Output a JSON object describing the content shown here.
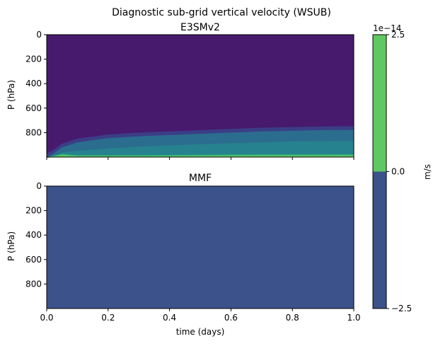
{
  "figure": {
    "suptitle": "Diagnostic sub-grid vertical velocity (WSUB)"
  },
  "chart_data": [
    {
      "type": "heatmap",
      "title": "E3SMv2",
      "ylabel": "P (hPa)",
      "xlabel": "",
      "xlim": [
        0.0,
        1.0
      ],
      "ylim": [
        1000,
        0
      ],
      "y_inverted": true,
      "yticks": [
        "0",
        "200",
        "400",
        "600",
        "800"
      ],
      "xticks_labeled": false,
      "fill_colors": {
        "upper_region": "#471a6e",
        "transition_band": "#3b3e86",
        "mid_band": "#2b6d8e",
        "lower_band": "#26828e",
        "near_surface": "#35b779",
        "surface": "#5ec962"
      },
      "level_boundaries_hpa": {
        "comment_free": true,
        "top_of_mid_band": [
          [
            0.0,
            1000
          ],
          [
            0.02,
            975
          ],
          [
            0.05,
            920
          ],
          [
            0.1,
            880
          ],
          [
            0.2,
            845
          ],
          [
            0.3,
            830
          ],
          [
            0.4,
            820
          ],
          [
            0.5,
            810
          ],
          [
            0.6,
            800
          ],
          [
            0.7,
            790
          ],
          [
            0.8,
            785
          ],
          [
            0.9,
            780
          ],
          [
            1.0,
            778
          ]
        ],
        "top_of_lower_band": [
          [
            0.0,
            1000
          ],
          [
            0.03,
            985
          ],
          [
            0.05,
            960
          ],
          [
            0.1,
            950
          ],
          [
            0.2,
            930
          ],
          [
            0.3,
            915
          ],
          [
            0.4,
            905
          ],
          [
            0.5,
            895
          ],
          [
            0.6,
            888
          ],
          [
            0.7,
            880
          ],
          [
            0.8,
            872
          ],
          [
            0.9,
            870
          ],
          [
            1.0,
            868
          ]
        ],
        "top_of_green": [
          [
            0.0,
            1000
          ],
          [
            0.03,
            985
          ],
          [
            0.05,
            975
          ],
          [
            0.1,
            985
          ],
          [
            0.3,
            985
          ],
          [
            0.6,
            980
          ],
          [
            1.0,
            978
          ]
        ]
      }
    },
    {
      "type": "heatmap",
      "title": "MMF",
      "ylabel": "P (hPa)",
      "xlabel": "time (days)",
      "xlim": [
        0.0,
        1.0
      ],
      "ylim": [
        1000,
        0
      ],
      "y_inverted": true,
      "yticks": [
        "0",
        "200",
        "400",
        "600",
        "800"
      ],
      "xticks": [
        "0.0",
        "0.2",
        "0.4",
        "0.6",
        "0.8",
        "1.0"
      ],
      "fill_color": "#3b528b"
    }
  ],
  "colorbar": {
    "label": "m/s",
    "scale_label": "1e−14",
    "ticks": [
      "2.5",
      "0.0",
      "−2.5"
    ],
    "range": [
      -2.5,
      2.5
    ],
    "segments": [
      {
        "from": -2.5,
        "to": 0.0,
        "color": "#3b528b"
      },
      {
        "from": 0.0,
        "to": 2.5,
        "color": "#5ec962"
      }
    ]
  }
}
